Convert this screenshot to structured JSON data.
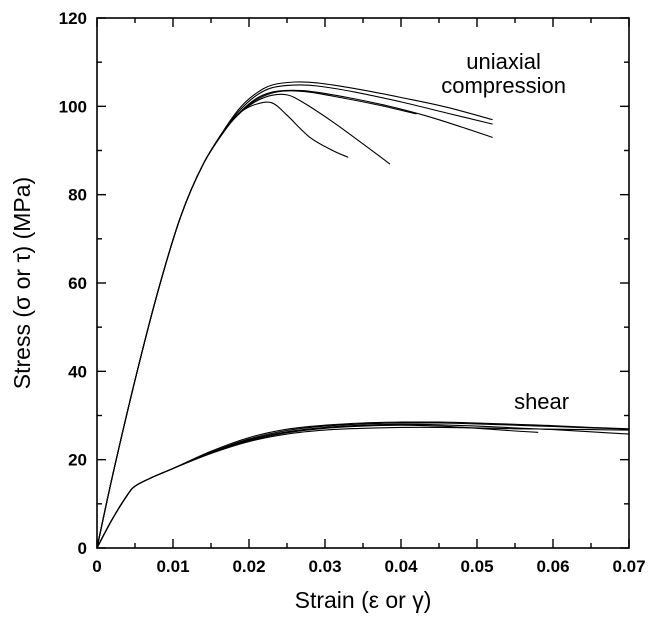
{
  "chart_data": {
    "type": "line",
    "xlabel": "Strain (ε or γ)",
    "ylabel": "Stress (σ or τ) (MPa)",
    "xlim": [
      0,
      0.07
    ],
    "ylim": [
      0,
      120
    ],
    "xticks": [
      0,
      0.01,
      0.02,
      0.03,
      0.04,
      0.05,
      0.06,
      0.07
    ],
    "xtick_labels": [
      "0",
      "0.01",
      "0.02",
      "0.03",
      "0.04",
      "0.05",
      "0.06",
      "0.07"
    ],
    "yticks": [
      0,
      20,
      40,
      60,
      80,
      100,
      120
    ],
    "ytick_labels": [
      "0",
      "20",
      "40",
      "60",
      "80",
      "100",
      "120"
    ],
    "grid": false,
    "legend": "none",
    "annotations": [
      {
        "lines": [
          "uniaxial",
          "compression"
        ],
        "x": 0.0535,
        "y": 108.5
      },
      {
        "lines": [
          "shear"
        ],
        "x": 0.0585,
        "y": 31.5
      }
    ],
    "series": [
      {
        "group": "uniaxial compression",
        "points": [
          [
            0,
            0
          ],
          [
            0.002,
            16
          ],
          [
            0.005,
            38
          ],
          [
            0.008,
            58
          ],
          [
            0.011,
            75
          ],
          [
            0.014,
            87
          ],
          [
            0.017,
            95
          ],
          [
            0.019,
            98.8
          ],
          [
            0.021,
            100.5
          ],
          [
            0.023,
            100.8
          ],
          [
            0.025,
            98
          ],
          [
            0.028,
            93
          ],
          [
            0.031,
            90
          ],
          [
            0.033,
            88.5
          ]
        ]
      },
      {
        "group": "uniaxial compression",
        "points": [
          [
            0,
            0
          ],
          [
            0.002,
            16
          ],
          [
            0.005,
            38
          ],
          [
            0.008,
            58
          ],
          [
            0.011,
            75
          ],
          [
            0.014,
            87
          ],
          [
            0.017,
            95
          ],
          [
            0.019,
            98.8
          ],
          [
            0.021,
            101.2
          ],
          [
            0.023,
            102.5
          ],
          [
            0.025,
            102.6
          ],
          [
            0.027,
            101
          ],
          [
            0.031,
            96.5
          ],
          [
            0.035,
            91.5
          ],
          [
            0.0385,
            87
          ]
        ]
      },
      {
        "group": "uniaxial compression",
        "points": [
          [
            0,
            0
          ],
          [
            0.002,
            16
          ],
          [
            0.005,
            38
          ],
          [
            0.008,
            58
          ],
          [
            0.011,
            75
          ],
          [
            0.014,
            87
          ],
          [
            0.017,
            95
          ],
          [
            0.019,
            98.8
          ],
          [
            0.021,
            101.5
          ],
          [
            0.023,
            103
          ],
          [
            0.025,
            103.5
          ],
          [
            0.028,
            103.2
          ],
          [
            0.032,
            102
          ],
          [
            0.037,
            100.3
          ],
          [
            0.042,
            98.3
          ]
        ]
      },
      {
        "group": "uniaxial compression",
        "points": [
          [
            0,
            0
          ],
          [
            0.002,
            16
          ],
          [
            0.005,
            38
          ],
          [
            0.008,
            58
          ],
          [
            0.011,
            75
          ],
          [
            0.014,
            87
          ],
          [
            0.017,
            95
          ],
          [
            0.019,
            99
          ],
          [
            0.021,
            101.8
          ],
          [
            0.023,
            103.2
          ],
          [
            0.025,
            103.6
          ],
          [
            0.028,
            103.4
          ],
          [
            0.033,
            102
          ],
          [
            0.038,
            100.2
          ],
          [
            0.043,
            98
          ],
          [
            0.048,
            95.3
          ],
          [
            0.052,
            93
          ]
        ]
      },
      {
        "group": "uniaxial compression",
        "points": [
          [
            0,
            0
          ],
          [
            0.002,
            16
          ],
          [
            0.005,
            38
          ],
          [
            0.008,
            58
          ],
          [
            0.011,
            75
          ],
          [
            0.014,
            87
          ],
          [
            0.017,
            95.2
          ],
          [
            0.019,
            99.5
          ],
          [
            0.021,
            102.5
          ],
          [
            0.023,
            104.2
          ],
          [
            0.026,
            104.8
          ],
          [
            0.029,
            104.6
          ],
          [
            0.034,
            103.2
          ],
          [
            0.04,
            101
          ],
          [
            0.046,
            98.5
          ],
          [
            0.052,
            96
          ]
        ]
      },
      {
        "group": "uniaxial compression",
        "points": [
          [
            0,
            0
          ],
          [
            0.002,
            16
          ],
          [
            0.005,
            38
          ],
          [
            0.008,
            58
          ],
          [
            0.011,
            75
          ],
          [
            0.014,
            87
          ],
          [
            0.017,
            95.4
          ],
          [
            0.019,
            100
          ],
          [
            0.021,
            103
          ],
          [
            0.023,
            104.8
          ],
          [
            0.026,
            105.5
          ],
          [
            0.029,
            105.3
          ],
          [
            0.034,
            104
          ],
          [
            0.04,
            102
          ],
          [
            0.046,
            99.8
          ],
          [
            0.052,
            97
          ]
        ]
      },
      {
        "group": "shear",
        "points": [
          [
            0,
            0
          ],
          [
            0.002,
            6.5
          ],
          [
            0.004,
            12
          ],
          [
            0.005,
            14
          ],
          [
            0.007,
            15.8
          ],
          [
            0.01,
            18
          ],
          [
            0.015,
            21.5
          ],
          [
            0.02,
            24.3
          ],
          [
            0.025,
            26.1
          ],
          [
            0.03,
            27.1
          ],
          [
            0.035,
            27.6
          ],
          [
            0.04,
            27.8
          ],
          [
            0.045,
            27.6
          ],
          [
            0.05,
            27.1
          ],
          [
            0.055,
            26.5
          ],
          [
            0.058,
            26.2
          ]
        ]
      },
      {
        "group": "shear",
        "points": [
          [
            0,
            0
          ],
          [
            0.002,
            6.5
          ],
          [
            0.004,
            12
          ],
          [
            0.005,
            14
          ],
          [
            0.007,
            15.8
          ],
          [
            0.01,
            18
          ],
          [
            0.015,
            21.7
          ],
          [
            0.02,
            24.7
          ],
          [
            0.025,
            26.6
          ],
          [
            0.03,
            27.6
          ],
          [
            0.035,
            28.1
          ],
          [
            0.04,
            28.3
          ],
          [
            0.045,
            28.3
          ],
          [
            0.05,
            28.1
          ],
          [
            0.055,
            27.8
          ],
          [
            0.06,
            27.5
          ],
          [
            0.065,
            27.2
          ],
          [
            0.07,
            26.9
          ]
        ]
      },
      {
        "group": "shear",
        "points": [
          [
            0,
            0
          ],
          [
            0.002,
            6.5
          ],
          [
            0.004,
            12
          ],
          [
            0.005,
            14
          ],
          [
            0.007,
            15.8
          ],
          [
            0.01,
            18
          ],
          [
            0.015,
            21.9
          ],
          [
            0.02,
            25
          ],
          [
            0.025,
            26.9
          ],
          [
            0.03,
            27.8
          ],
          [
            0.035,
            28.3
          ],
          [
            0.04,
            28.5
          ],
          [
            0.045,
            28.5
          ],
          [
            0.05,
            28.3
          ],
          [
            0.055,
            28
          ],
          [
            0.06,
            27.7
          ],
          [
            0.065,
            27.3
          ],
          [
            0.07,
            27
          ]
        ]
      },
      {
        "group": "shear",
        "points": [
          [
            0,
            0
          ],
          [
            0.002,
            6.5
          ],
          [
            0.004,
            12
          ],
          [
            0.005,
            14
          ],
          [
            0.007,
            15.8
          ],
          [
            0.01,
            18
          ],
          [
            0.015,
            21.6
          ],
          [
            0.02,
            24.5
          ],
          [
            0.025,
            26.3
          ],
          [
            0.03,
            27.3
          ],
          [
            0.035,
            27.8
          ],
          [
            0.04,
            28
          ],
          [
            0.045,
            27.9
          ],
          [
            0.05,
            27.6
          ],
          [
            0.055,
            27.2
          ],
          [
            0.06,
            26.8
          ],
          [
            0.065,
            26.3
          ],
          [
            0.07,
            25.8
          ]
        ]
      },
      {
        "group": "shear",
        "points": [
          [
            0,
            0
          ],
          [
            0.002,
            6.5
          ],
          [
            0.004,
            12
          ],
          [
            0.005,
            14
          ],
          [
            0.007,
            15.8
          ],
          [
            0.01,
            18
          ],
          [
            0.015,
            21.4
          ],
          [
            0.02,
            24.1
          ],
          [
            0.025,
            25.8
          ],
          [
            0.03,
            26.7
          ],
          [
            0.035,
            27.1
          ],
          [
            0.04,
            27.3
          ],
          [
            0.045,
            27.3
          ],
          [
            0.05,
            27.2
          ],
          [
            0.055,
            27
          ],
          [
            0.06,
            26.9
          ],
          [
            0.065,
            26.8
          ],
          [
            0.07,
            26.7
          ]
        ]
      }
    ]
  }
}
